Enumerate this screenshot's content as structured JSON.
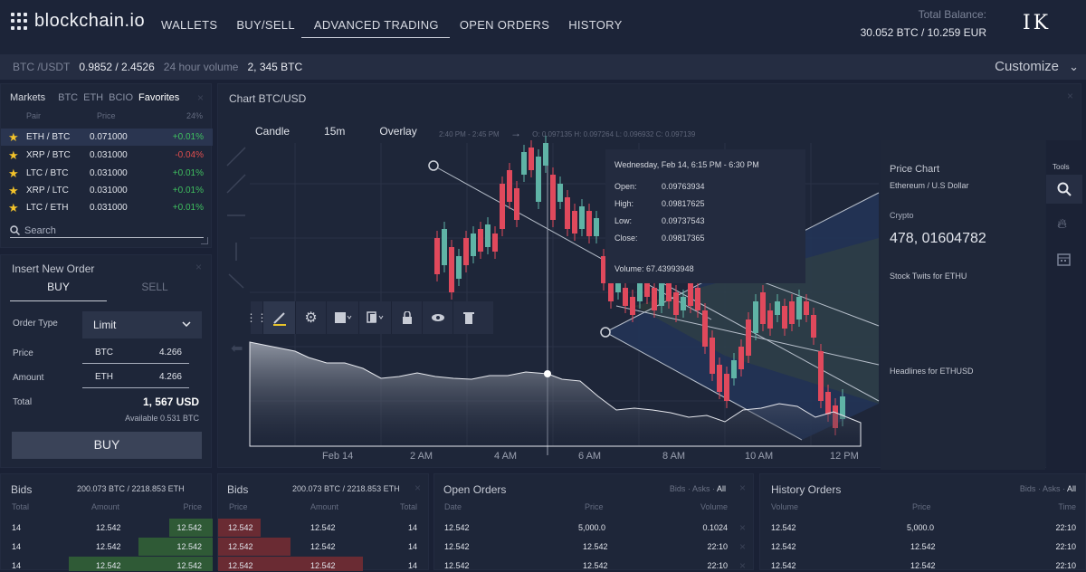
{
  "header": {
    "logo_text": "blockchain.io",
    "nav": [
      "WALLETS",
      "BUY/SELL",
      "ADVANCED TRADING",
      "OPEN ORDERS",
      "HISTORY"
    ],
    "active_nav": "ADVANCED TRADING",
    "balance_label": "Total Balance:",
    "balance_value": "30.052 BTC / 10.259 EUR",
    "user_logo": "I K"
  },
  "ticker": {
    "pair": "BTC /USDT",
    "price": "0.9852 / 2.4526",
    "volume_label": "24 hour volume",
    "volume": "2, 345 BTC",
    "customize": "Customize"
  },
  "markets": {
    "title": "Markets",
    "tabs": [
      "BTC",
      "ETH",
      "BCIO",
      "Favorites"
    ],
    "col_pair": "Pair",
    "col_price": "Price",
    "col_change": "24%",
    "rows": [
      {
        "pair": "ETH / BTC",
        "price": "0.071000",
        "change": "+0.01%",
        "dir": "pos"
      },
      {
        "pair": "XRP / BTC",
        "price": "0.031000",
        "change": "-0.04%",
        "dir": "neg"
      },
      {
        "pair": "LTC / BTC",
        "price": "0.031000",
        "change": "+0.01%",
        "dir": "pos"
      },
      {
        "pair": "XRP / LTC",
        "price": "0.031000",
        "change": "+0.01%",
        "dir": "pos"
      },
      {
        "pair": "LTC / ETH",
        "price": "0.031000",
        "change": "+0.01%",
        "dir": "pos"
      }
    ],
    "search_placeholder": "Search"
  },
  "order": {
    "title": "Insert New Order",
    "buy_tab": "BUY",
    "sell_tab": "SELL",
    "order_type_label": "Order Type",
    "order_type": "Limit",
    "price_label": "Price",
    "price_currency": "BTC",
    "price_value": "4.266",
    "amount_label": "Amount",
    "amount_currency": "ETH",
    "amount_value": "4.266",
    "total_label": "Total",
    "total_value": "1, 567 USD",
    "available": "Available 0.531 BTC",
    "buy_button": "BUY"
  },
  "chart": {
    "title": "Chart BTC/USD",
    "controls": [
      "Candle",
      "15m",
      "Overlay"
    ],
    "range": "2:40 PM - 2:45 PM",
    "ohlc": "O: 0.097135   H: 0.097264   L: 0.096932   C: 0.097139",
    "x_labels": [
      "Feb 14",
      "2 AM",
      "4 AM",
      "6 AM",
      "8 AM",
      "10 AM",
      "12 PM"
    ],
    "tooltip": {
      "date": "Wednesday, Feb 14, 6:15 PM - 6:30 PM",
      "open_label": "Open:",
      "open": "0.09763934",
      "high_label": "High:",
      "high": "0.09817625",
      "low_label": "Low:",
      "low": "0.09737543",
      "close_label": "Close:",
      "close": "0.09817365",
      "volume": "Volume: 67.43993948"
    },
    "side": {
      "title": "Price Chart",
      "subtitle": "Ethereum / U.S Dollar",
      "crypto_label": "Crypto",
      "crypto_value": "478, 01604782",
      "stock_twits": "Stock Twits for ETHU",
      "headlines": "Headlines for ETHUSD"
    },
    "tools_label": "Tools"
  },
  "bids1": {
    "title": "Bids",
    "summary": "200.073 BTC / 2218.853 ETH",
    "cols": [
      "Total",
      "Amount",
      "Price"
    ],
    "rows": [
      [
        "14",
        "12.542",
        "12.542"
      ],
      [
        "14",
        "12.542",
        "12.542"
      ],
      [
        "14",
        "12.542",
        "12.542"
      ]
    ]
  },
  "bids2": {
    "title": "Bids",
    "summary": "200.073 BTC / 2218.853 ETH",
    "cols": [
      "Price",
      "Amount",
      "Total"
    ],
    "rows": [
      [
        "12.542",
        "12.542",
        "14"
      ],
      [
        "12.542",
        "12.542",
        "14"
      ],
      [
        "12.542",
        "12.542",
        "14"
      ]
    ]
  },
  "open_orders": {
    "title": "Open Orders",
    "filters": [
      "Bids",
      "Asks",
      "All"
    ],
    "cols": [
      "Date",
      "Price",
      "Volume"
    ],
    "rows": [
      [
        "12.542",
        "5,000.0",
        "0.1024"
      ],
      [
        "12.542",
        "12.542",
        "22:10"
      ],
      [
        "12.542",
        "12.542",
        "22:10"
      ]
    ]
  },
  "history_orders": {
    "title": "History Orders",
    "filters": [
      "Bids",
      "Asks",
      "All"
    ],
    "cols": [
      "Volume",
      "Price",
      "Time"
    ],
    "rows": [
      [
        "12.542",
        "5,000.0",
        "22:10"
      ],
      [
        "12.542",
        "12.542",
        "22:10"
      ],
      [
        "12.542",
        "12.542",
        "22:10"
      ]
    ]
  }
}
